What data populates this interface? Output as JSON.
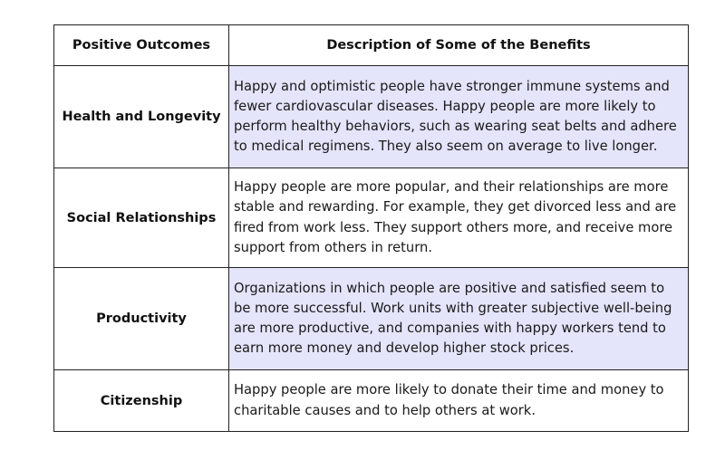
{
  "table": {
    "headers": {
      "outcome": "Positive Outcomes",
      "description": "Description of Some of the Benefits"
    },
    "rows": [
      {
        "outcome": "Health and Longevity",
        "description": "Happy and optimistic people have stronger immune systems and fewer cardiovascular diseases. Happy people are more likely to perform healthy behaviors, such as wearing seat belts and adhere to medical regimens. They also seem on average to live longer."
      },
      {
        "outcome": "Social Relationships",
        "description": "Happy people are more popular, and their relationships are more stable and rewarding. For example, they get divorced less and are fired from work less. They support others more, and receive more support from others in return."
      },
      {
        "outcome": "Productivity",
        "description": "Organizations in which people are positive and satisfied seem to be more successful. Work units with greater subjective well-being are more productive, and companies with happy workers tend to earn more money and develop higher stock prices."
      },
      {
        "outcome": "Citizenship",
        "description": "Happy people are more likely to donate their time and money to charitable causes and to help others at work."
      }
    ]
  },
  "colors": {
    "shaded_cell": "#e4e4fb",
    "border": "#222222",
    "text": "#111111"
  }
}
